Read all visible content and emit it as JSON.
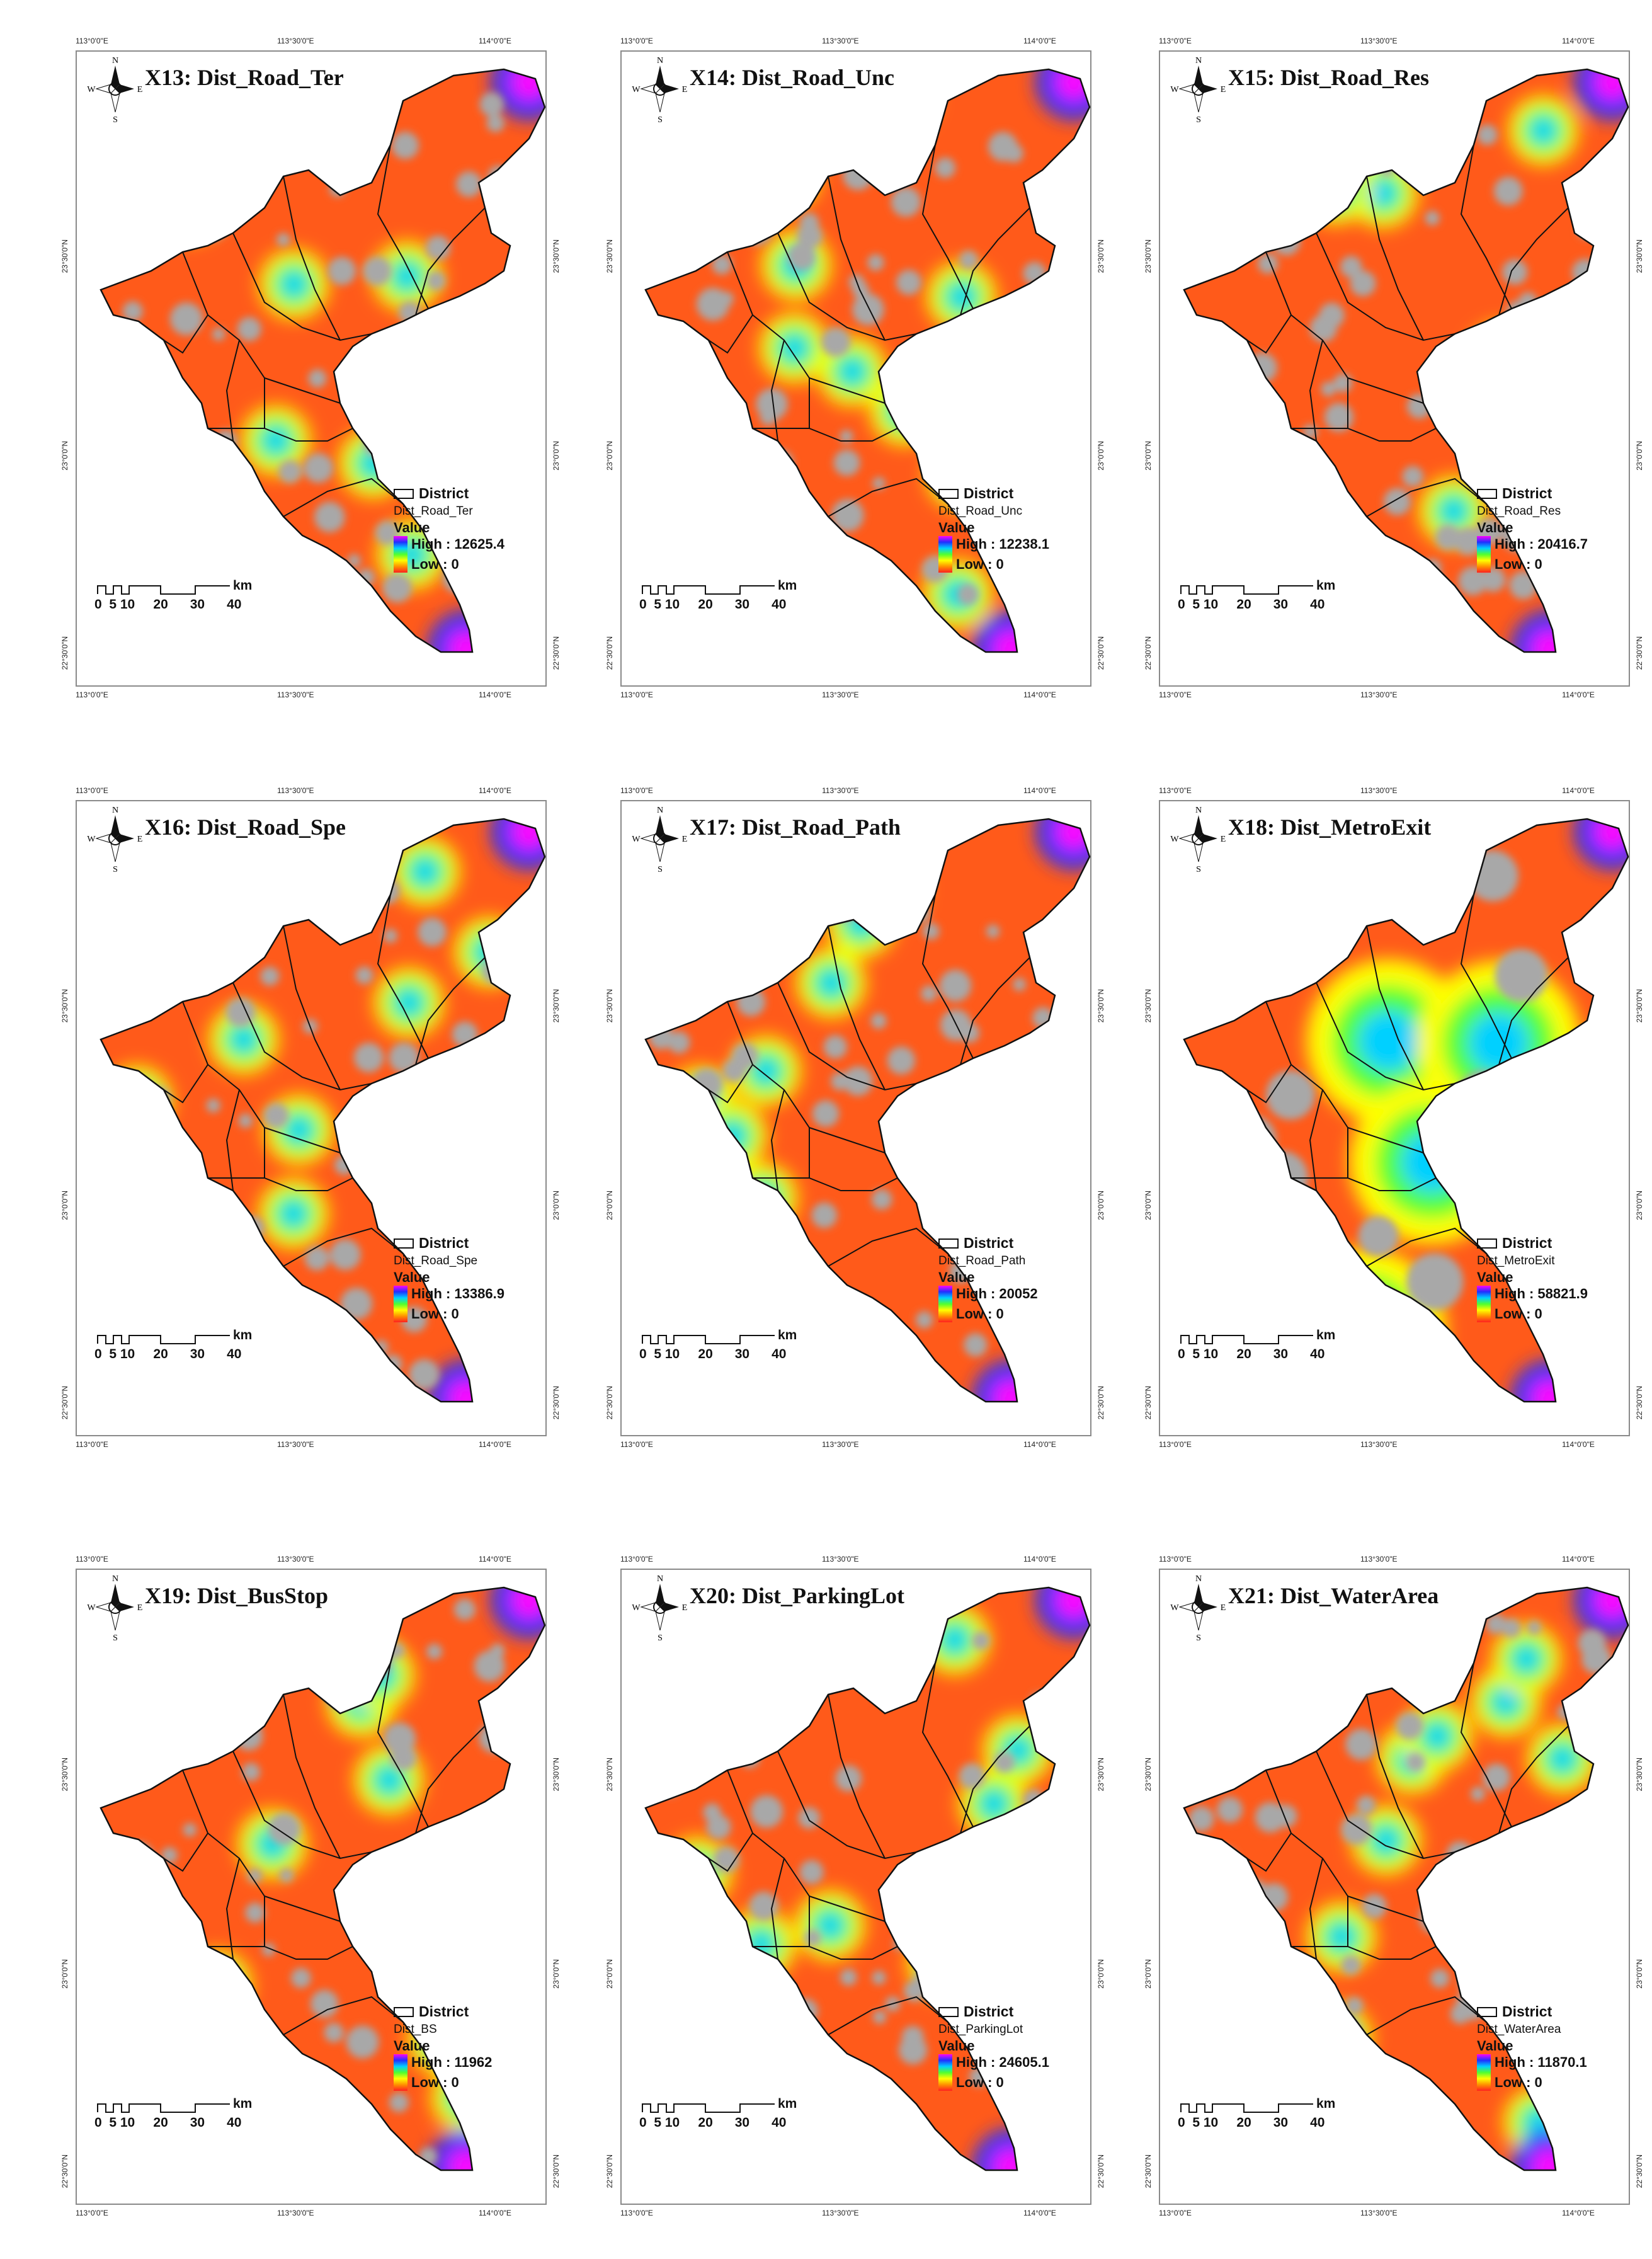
{
  "figure": {
    "axis_labels": {
      "lon_left": "113°0'0\"E",
      "lon_mid": "113°30'0\"E",
      "lon_right": "114°0'0\"E",
      "lat_top": "23°30'0\"N",
      "lat_mid": "23°0'0\"N",
      "lat_bot": "22°30'0\"N"
    },
    "compass": {
      "n": "N",
      "s": "S",
      "e": "E",
      "w": "W"
    },
    "legend_common": {
      "district": "District",
      "value": "Value",
      "low": "Low : 0"
    },
    "scale": {
      "ticks": "0  5 10     20      30      40",
      "unit": "km"
    },
    "color_ramp": [
      "#ff00ff",
      "#2030ff",
      "#00d0ff",
      "#50ff30",
      "#ffff00",
      "#ff9000",
      "#ff2020"
    ],
    "background_color": "#a8a8a8",
    "district_line_color": "#111111",
    "panels": [
      {
        "id": "X13",
        "title": "X13: Dist_Road_Ter",
        "layer": "Dist_Road_Ter",
        "high": "High : 12625.4",
        "high_value": 12625.4
      },
      {
        "id": "X14",
        "title": "X14: Dist_Road_Unc",
        "layer": "Dist_Road_Unc",
        "high": "High : 12238.1",
        "high_value": 12238.1
      },
      {
        "id": "X15",
        "title": "X15: Dist_Road_Res",
        "layer": "Dist_Road_Res",
        "high": "High : 20416.7",
        "high_value": 20416.7
      },
      {
        "id": "X16",
        "title": "X16: Dist_Road_Spe",
        "layer": "Dist_Road_Spe",
        "high": "High : 13386.9",
        "high_value": 13386.9
      },
      {
        "id": "X17",
        "title": "X17: Dist_Road_Path",
        "layer": "Dist_Road_Path",
        "high": "High : 20052",
        "high_value": 20052
      },
      {
        "id": "X18",
        "title": "X18: Dist_MetroExit",
        "layer": "Dist_MetroExit",
        "high": "High : 58821.9",
        "high_value": 58821.9
      },
      {
        "id": "X19",
        "title": "X19: Dist_BusStop",
        "layer": "Dist_BS",
        "high": "High : 11962",
        "high_value": 11962
      },
      {
        "id": "X20",
        "title": "X20: Dist_ParkingLot",
        "layer": "Dist_ParkingLot",
        "high": "High : 24605.1",
        "high_value": 24605.1
      },
      {
        "id": "X21",
        "title": "X21: Dist_WaterArea",
        "layer": "Dist_WaterArea",
        "high": "High : 11870.1",
        "high_value": 11870.1
      }
    ]
  }
}
